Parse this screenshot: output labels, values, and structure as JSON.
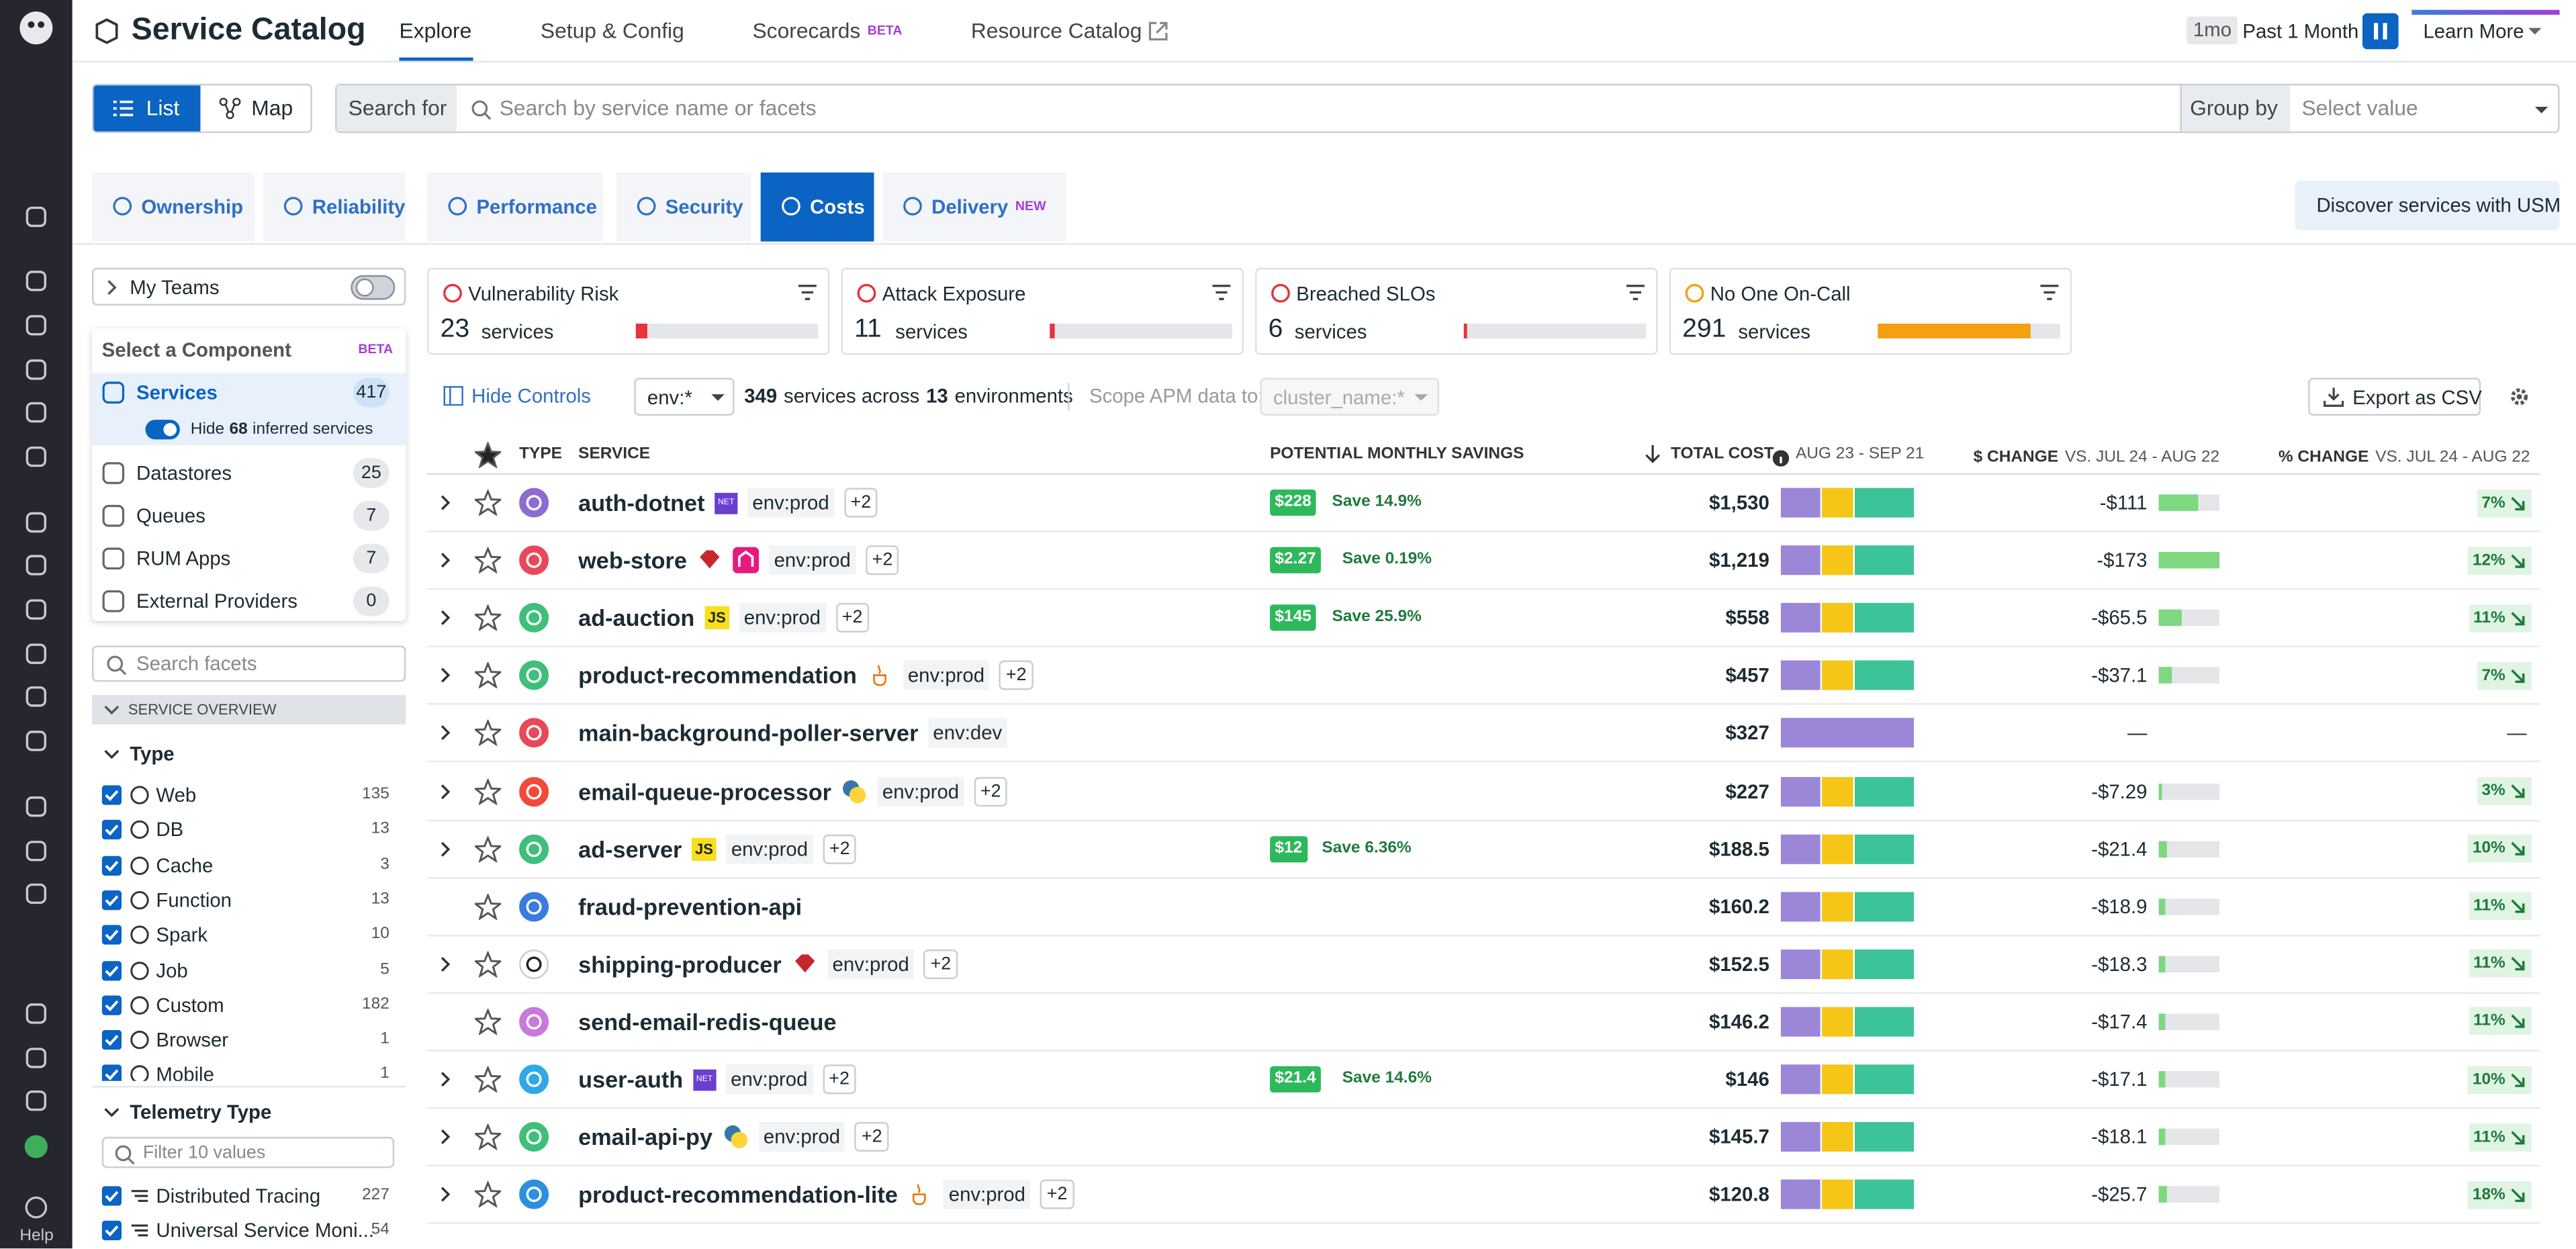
{
  "nav": {
    "help": "Help"
  },
  "header": {
    "title": "Service Catalog",
    "tabs": [
      "Explore",
      "Setup & Config",
      "Scorecards",
      "Resource Catalog"
    ],
    "scorecards_badge": "BETA",
    "time_short": "1mo",
    "time_label": "Past 1 Month",
    "learn_more": "Learn More"
  },
  "toolbar": {
    "list": "List",
    "map": "Map",
    "search_label": "Search for",
    "search_placeholder": "Search by service name or facets",
    "group_by": "Group by",
    "group_placeholder": "Select value"
  },
  "lenses": {
    "tabs": [
      "Ownership",
      "Reliability",
      "Performance",
      "Security",
      "Costs",
      "Delivery"
    ],
    "delivery_badge": "NEW",
    "discover": "Discover services with USM"
  },
  "sidebar": {
    "my_teams": "My Teams",
    "component_title": "Select a Component",
    "component_badge": "BETA",
    "components": [
      {
        "label": "Services",
        "count": 417
      },
      {
        "label": "Datastores",
        "count": 25
      },
      {
        "label": "Queues",
        "count": 7
      },
      {
        "label": "RUM Apps",
        "count": 7
      },
      {
        "label": "External Providers",
        "count": 0
      }
    ],
    "hide_prefix": "Hide",
    "hide_count": 68,
    "hide_suffix": "inferred services",
    "search_placeholder": "Search facets",
    "section": "SERVICE OVERVIEW",
    "type_title": "Type",
    "types": [
      {
        "label": "Web",
        "count": 135
      },
      {
        "label": "DB",
        "count": 13
      },
      {
        "label": "Cache",
        "count": 3
      },
      {
        "label": "Function",
        "count": 13
      },
      {
        "label": "Spark",
        "count": 10
      },
      {
        "label": "Job",
        "count": 5
      },
      {
        "label": "Custom",
        "count": 182
      },
      {
        "label": "Browser",
        "count": 1
      },
      {
        "label": "Mobile",
        "count": 1
      }
    ],
    "telemetry_title": "Telemetry Type",
    "telemetry_filter": "Filter 10 values",
    "telemetry": [
      {
        "label": "Distributed Tracing",
        "count": 227
      },
      {
        "label": "Universal Service Moni...",
        "count": 54
      }
    ]
  },
  "cards": [
    {
      "title": "Vulnerability Risk",
      "count": 23,
      "unit": "services",
      "color": "#e5343a"
    },
    {
      "title": "Attack Exposure",
      "count": 11,
      "unit": "services",
      "color": "#e5343a"
    },
    {
      "title": "Breached SLOs",
      "count": 6,
      "unit": "services",
      "color": "#e5343a"
    },
    {
      "title": "No One On-Call",
      "count": 291,
      "unit": "services",
      "color": "#f5a00f"
    }
  ],
  "controls": {
    "hide_controls": "Hide Controls",
    "env": "env:*",
    "services_count": 349,
    "services_text": "services across",
    "env_count": 13,
    "env_text": "environments",
    "scope_label": "Scope APM data to:",
    "scope_value": "cluster_name:*",
    "export": "Export as CSV"
  },
  "table": {
    "columns": {
      "type": "TYPE",
      "service": "SERVICE",
      "savings": "POTENTIAL MONTHLY SAVINGS",
      "total_cost": "TOTAL COST",
      "total_cost_period": "AUG 23 - SEP 21",
      "change": "$ CHANGE",
      "change_period": "VS. JUL 24 - AUG 22",
      "pct_change": "% CHANGE",
      "pct_period": "VS. JUL 24 - AUG 22"
    },
    "rows": [
      {
        "name": "auth-dotnet",
        "lang": "NET",
        "env": "env:prod",
        "more": "+2",
        "savings": "$228",
        "save": "Save 14.9%",
        "total_cost": "$1,530",
        "change": -111,
        "change_label": "-$111",
        "pct": "7%",
        "color": "#8e6bd0"
      },
      {
        "name": "web-store",
        "env": "env:prod",
        "more": "+2",
        "savings": "$2.27",
        "save": "Save 0.19%",
        "total_cost": "$1,219",
        "change": -173,
        "change_label": "-$173",
        "pct": "12%",
        "color": "#e8495a"
      },
      {
        "name": "ad-auction",
        "lang": "JS",
        "env": "env:prod",
        "more": "+2",
        "savings": "$145",
        "save": "Save 25.9%",
        "total_cost": "$558",
        "change": -65.5,
        "change_label": "-$65.5",
        "pct": "11%",
        "color": "#3fbf7a"
      },
      {
        "name": "product-recommendation",
        "env": "env:prod",
        "more": "+2",
        "total_cost": "$457",
        "change": -37.1,
        "change_label": "-$37.1",
        "pct": "7%",
        "color": "#3fbf7a"
      },
      {
        "name": "main-background-poller-server",
        "env": "env:dev",
        "total_cost": "$327",
        "change": null,
        "change_label": "—",
        "pct": "—",
        "color": "#e8495a"
      },
      {
        "name": "email-queue-processor",
        "env": "env:prod",
        "more": "+2",
        "total_cost": "$227",
        "change": -7.29,
        "change_label": "-$7.29",
        "pct": "3%",
        "color": "#f04a3a"
      },
      {
        "name": "ad-server",
        "lang": "JS",
        "env": "env:prod",
        "more": "+2",
        "savings": "$12",
        "save": "Save 6.36%",
        "total_cost": "$188.5",
        "change": -21.4,
        "change_label": "-$21.4",
        "pct": "10%",
        "color": "#3fbf7a"
      },
      {
        "name": "fraud-prevention-api",
        "total_cost": "$160.2",
        "change": -18.9,
        "change_label": "-$18.9",
        "pct": "11%",
        "color": "#3a7be0"
      },
      {
        "name": "shipping-producer",
        "env": "env:prod",
        "more": "+2",
        "total_cost": "$152.5",
        "change": -18.3,
        "change_label": "-$18.3",
        "pct": "11%",
        "color": "#ffffff"
      },
      {
        "name": "send-email-redis-queue",
        "total_cost": "$146.2",
        "change": -17.4,
        "change_label": "-$17.4",
        "pct": "11%",
        "color": "#c77ad9"
      },
      {
        "name": "user-auth",
        "lang": "NET",
        "env": "env:prod",
        "more": "+2",
        "savings": "$21.4",
        "save": "Save 14.6%",
        "total_cost": "$146",
        "change": -17.1,
        "change_label": "-$17.1",
        "pct": "10%",
        "color": "#2ea8e6"
      },
      {
        "name": "email-api-py",
        "env": "env:prod",
        "more": "+2",
        "total_cost": "$145.7",
        "change": -18.1,
        "change_label": "-$18.1",
        "pct": "11%",
        "color": "#3fbf7a"
      },
      {
        "name": "product-recommendation-lite",
        "env": "env:prod",
        "more": "+2",
        "total_cost": "$120.8",
        "change": -25.7,
        "change_label": "-$25.7",
        "pct": "18%",
        "color": "#2e8fe0"
      }
    ]
  }
}
